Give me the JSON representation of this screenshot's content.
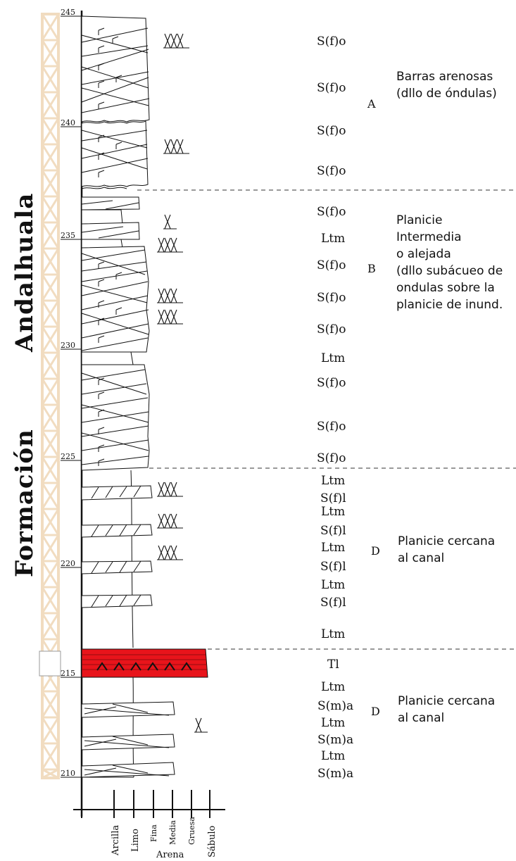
{
  "formation_label": "Formación",
  "formation_name": "Andalhuala",
  "depth_ticks": [
    "245",
    "240",
    "235",
    "230",
    "225",
    "220",
    "215",
    "210"
  ],
  "facies_labels": [
    "S(f)o",
    "S(f)o",
    "S(f)o",
    "S(f)o",
    "S(f)o",
    "Ltm",
    "S(f)o",
    "S(f)o",
    "S(f)o",
    "Ltm",
    "S(f)o",
    "S(f)o",
    "S(f)o",
    "Ltm",
    "S(f)l",
    "Ltm",
    "S(f)l",
    "Ltm",
    "S(f)l",
    "Ltm",
    "S(f)l",
    "Ltm",
    "Tl",
    "Ltm",
    "S(m)a",
    "Ltm",
    "S(m)a",
    "Ltm",
    "S(m)a"
  ],
  "units": [
    {
      "code": "A",
      "desc_lines": [
        "Barras arenosas",
        "(dllo de óndulas)"
      ]
    },
    {
      "code": "B",
      "desc_lines": [
        "Planicie",
        "Intermedia",
        "o alejada",
        "(dllo subácueo de",
        "ondulas sobre la",
        "planicie de inund."
      ]
    },
    {
      "code": "D",
      "desc_lines": [
        "Planicie cercana",
        "al canal"
      ]
    },
    {
      "code": "D",
      "desc_lines": [
        "Planicie cercana",
        "al canal"
      ]
    }
  ],
  "grain_scale": {
    "labels": [
      "Arcilla",
      "Limo",
      "Fina",
      "Media",
      "Gruesa",
      "Sábulo"
    ],
    "arena_label": "Arena"
  },
  "colors": {
    "scale_bar": "#f1dcc0",
    "tuff_layer": "#e8141b",
    "ink": "#111111"
  }
}
